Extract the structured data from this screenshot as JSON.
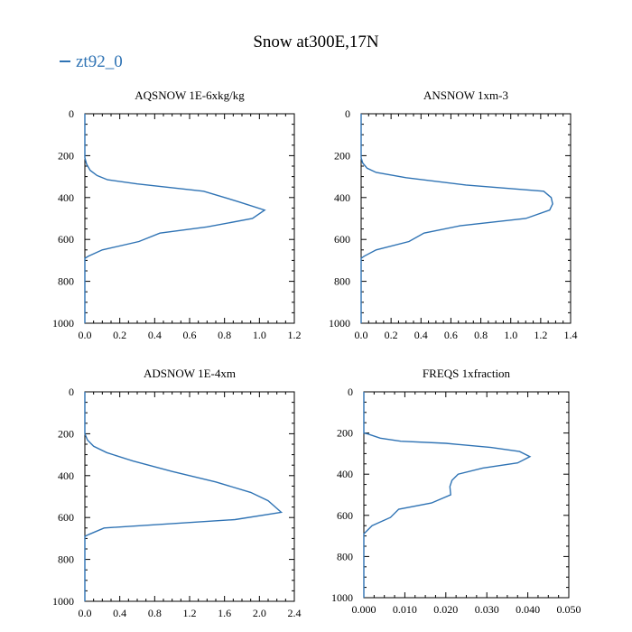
{
  "figure": {
    "title": "Snow at300E,17N",
    "legend_label": "zt92_0",
    "line_color": "#2f73b4"
  },
  "chart_data": [
    {
      "type": "line",
      "title": "AQSNOW  1E-6xkg/kg",
      "xlim": [
        0,
        1.2
      ],
      "ylim": [
        1000,
        0
      ],
      "x_ticks": [
        "0.0",
        "0.2",
        "0.4",
        "0.6",
        "0.8",
        "1.0",
        "1.2"
      ],
      "y_ticks": [
        "0",
        "200",
        "400",
        "600",
        "800",
        "1000"
      ],
      "series": [
        {
          "name": "zt92_0",
          "x": [
            0,
            0,
            0.01,
            0.03,
            0.07,
            0.13,
            0.3,
            0.68,
            0.88,
            1.03,
            0.96,
            0.7,
            0.43,
            0.31,
            0.1,
            0.02,
            0,
            0
          ],
          "y": [
            0,
            210,
            240,
            270,
            295,
            315,
            335,
            370,
            420,
            460,
            500,
            540,
            570,
            610,
            650,
            680,
            690,
            1000
          ]
        }
      ]
    },
    {
      "type": "line",
      "title": "ANSNOW  1xm-3",
      "xlim": [
        0,
        1.4
      ],
      "ylim": [
        1000,
        0
      ],
      "x_ticks": [
        "0.0",
        "0.2",
        "0.4",
        "0.6",
        "0.8",
        "1.0",
        "1.2",
        "1.4"
      ],
      "y_ticks": [
        "0",
        "200",
        "400",
        "600",
        "800",
        "1000"
      ],
      "series": [
        {
          "name": "zt92_0",
          "x": [
            0,
            0,
            0.01,
            0.04,
            0.1,
            0.3,
            0.7,
            1.22,
            1.27,
            1.28,
            1.26,
            1.1,
            0.66,
            0.42,
            0.32,
            0.1,
            0.02,
            0,
            0
          ],
          "y": [
            0,
            210,
            235,
            260,
            280,
            305,
            340,
            370,
            400,
            430,
            460,
            500,
            535,
            570,
            610,
            650,
            680,
            690,
            1000
          ]
        }
      ]
    },
    {
      "type": "line",
      "title": "ADSNOW  1E-4xm",
      "xlim": [
        0,
        2.4
      ],
      "ylim": [
        1000,
        0
      ],
      "x_ticks": [
        "0.0",
        "0.4",
        "0.8",
        "1.2",
        "1.6",
        "2.0",
        "2.4"
      ],
      "y_ticks": [
        "0",
        "200",
        "400",
        "600",
        "800",
        "1000"
      ],
      "series": [
        {
          "name": "zt92_0",
          "x": [
            0,
            0,
            0.03,
            0.1,
            0.25,
            0.55,
            1.0,
            1.5,
            1.9,
            2.1,
            2.25,
            1.72,
            0.22,
            0.05,
            0,
            0
          ],
          "y": [
            0,
            200,
            230,
            260,
            290,
            330,
            380,
            430,
            480,
            520,
            575,
            610,
            650,
            680,
            690,
            1000
          ]
        }
      ]
    },
    {
      "type": "line",
      "title": "FREQS  1xfraction",
      "xlim": [
        0,
        0.05
      ],
      "ylim": [
        1000,
        0
      ],
      "x_ticks": [
        "0.000",
        "0.010",
        "0.020",
        "0.030",
        "0.040",
        "0.050"
      ],
      "y_ticks": [
        "0",
        "200",
        "400",
        "600",
        "800",
        "1000"
      ],
      "series": [
        {
          "name": "zt92_0",
          "x": [
            0,
            0,
            0.001,
            0.004,
            0.009,
            0.02,
            0.031,
            0.038,
            0.0405,
            0.0375,
            0.029,
            0.023,
            0.0215,
            0.021,
            0.0212,
            0.0165,
            0.0085,
            0.0065,
            0.002,
            0.0005,
            0,
            0
          ],
          "y": [
            0,
            200,
            205,
            225,
            240,
            250,
            270,
            290,
            315,
            345,
            370,
            400,
            430,
            460,
            500,
            540,
            570,
            610,
            650,
            680,
            690,
            1000
          ]
        }
      ]
    }
  ]
}
